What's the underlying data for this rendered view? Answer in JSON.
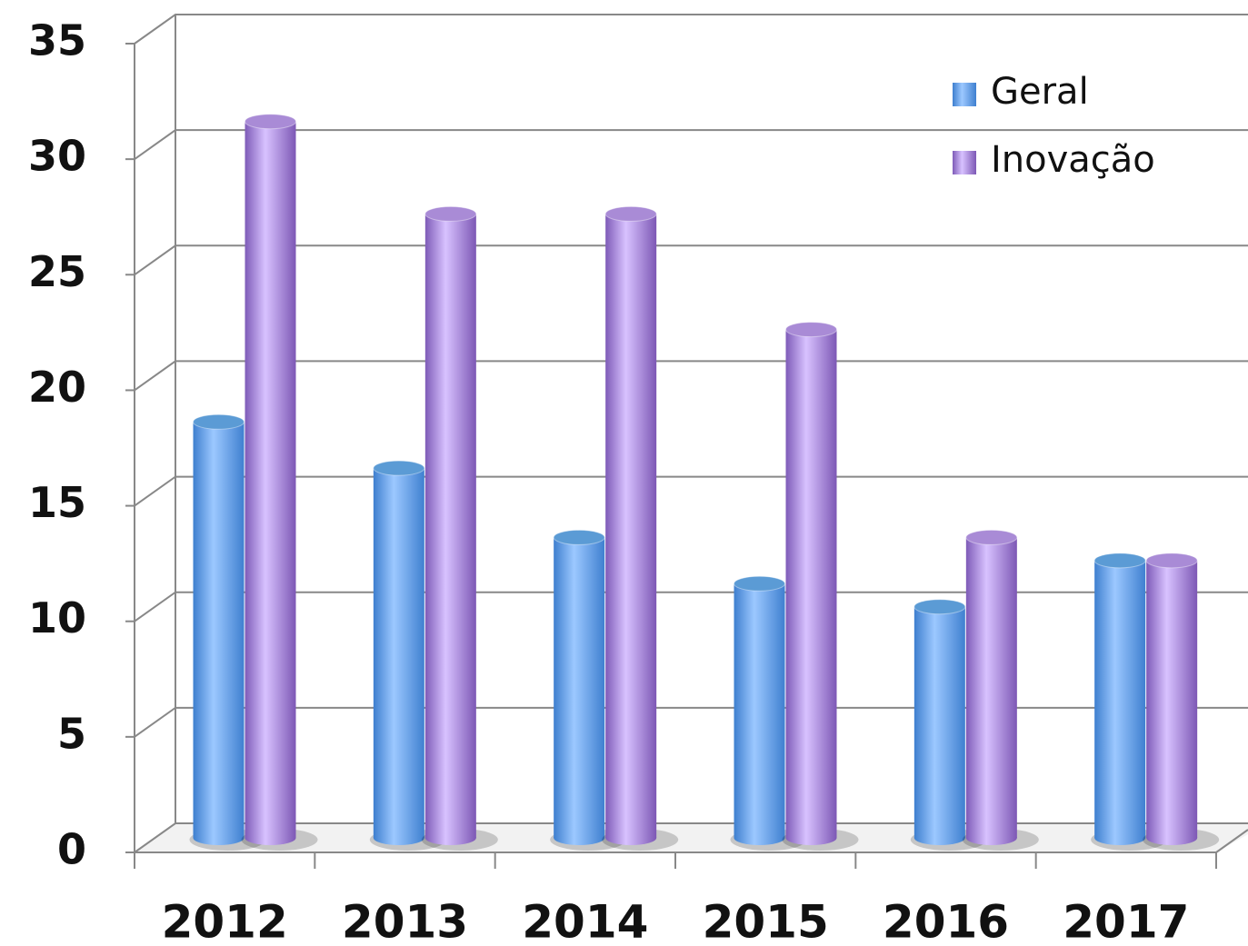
{
  "chart_data": {
    "type": "bar",
    "style": "3d-cylinder",
    "categories": [
      "2012",
      "2013",
      "2014",
      "2015",
      "2016",
      "2017"
    ],
    "series": [
      {
        "name": "Geral",
        "color": "#5b9bd5",
        "values": [
          18,
          16,
          13,
          11,
          10,
          12
        ]
      },
      {
        "name": "Inovação",
        "color": "#a98bd6",
        "values": [
          31,
          27,
          27,
          22,
          13,
          12
        ]
      }
    ],
    "ylim": [
      0,
      35
    ],
    "yticks": [
      0,
      5,
      10,
      15,
      20,
      25,
      30,
      35
    ],
    "grid": true,
    "legend": "top-right"
  }
}
